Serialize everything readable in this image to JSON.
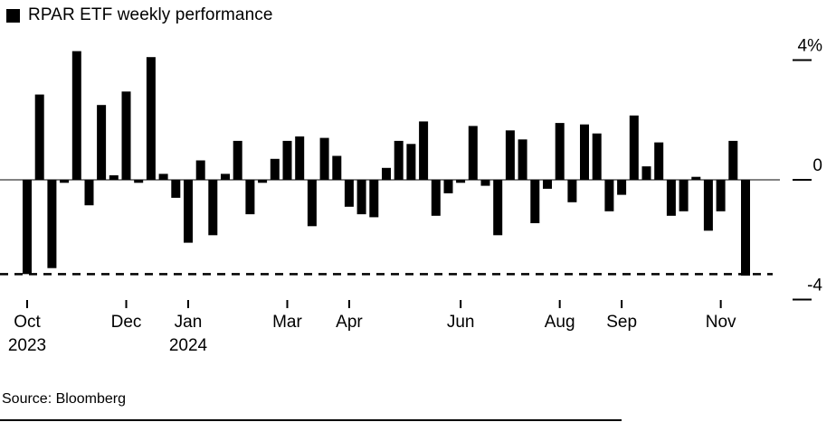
{
  "header": {
    "legend_label": "RPAR ETF weekly performance",
    "legend_swatch_color": "#000000"
  },
  "source": {
    "label": "Source: Bloomberg"
  },
  "chart_data": {
    "type": "bar",
    "title": "RPAR ETF weekly performance",
    "legend_position": "top-left",
    "grid": false,
    "bar_color": "#000000",
    "axis_color": "#000000",
    "zero_line_color": "#595959",
    "unit": "%",
    "ylim": [
      -4,
      4
    ],
    "y_ticks": [
      {
        "value": 4,
        "label": "4%"
      },
      {
        "value": 0,
        "label": "0"
      },
      {
        "value": -4,
        "label": "-4"
      }
    ],
    "x_ticks": [
      {
        "index": 0,
        "label": "Oct",
        "year": "2023"
      },
      {
        "index": 8,
        "label": "Dec"
      },
      {
        "index": 13,
        "label": "Jan",
        "year": "2024"
      },
      {
        "index": 21,
        "label": "Mar"
      },
      {
        "index": 26,
        "label": "Apr"
      },
      {
        "index": 35,
        "label": "Jun"
      },
      {
        "index": 43,
        "label": "Aug"
      },
      {
        "index": 48,
        "label": "Sep"
      },
      {
        "index": 56,
        "label": "Nov"
      }
    ],
    "reference_line": {
      "value": -3.15,
      "style": "dashed",
      "color": "#000000"
    },
    "x_label_period": "weekly, Oct 2023 - Nov 2024",
    "values": [
      -3.15,
      2.85,
      -2.95,
      -0.1,
      4.3,
      -0.85,
      2.5,
      0.15,
      2.95,
      -0.1,
      4.1,
      0.2,
      -0.6,
      -2.1,
      0.65,
      -1.85,
      0.2,
      1.3,
      -1.15,
      -0.1,
      0.7,
      1.3,
      1.45,
      -1.55,
      1.4,
      0.8,
      -0.9,
      -1.15,
      -1.25,
      0.4,
      1.3,
      1.2,
      1.95,
      -1.2,
      -0.45,
      -0.1,
      1.8,
      -0.2,
      -1.85,
      1.65,
      1.35,
      -1.45,
      -0.3,
      1.9,
      -0.75,
      1.85,
      1.55,
      -1.05,
      -0.5,
      2.15,
      0.45,
      1.25,
      -1.2,
      -1.05,
      0.1,
      -1.7,
      -1.05,
      1.3,
      -3.2
    ]
  }
}
